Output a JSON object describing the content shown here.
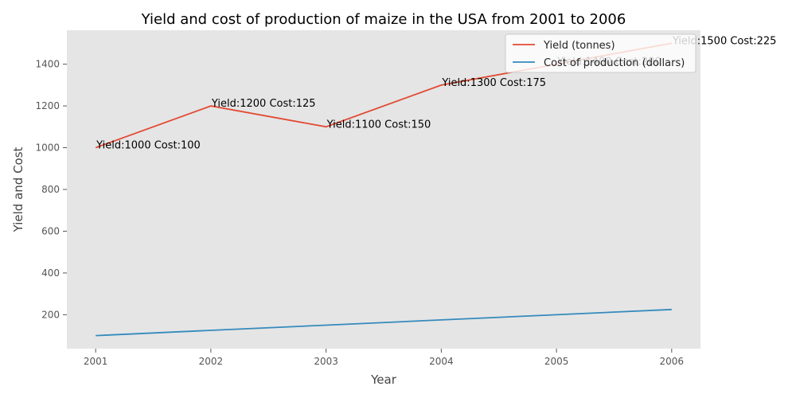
{
  "chart_data": {
    "type": "line",
    "title": "Yield and cost of production of maize in the USA from 2001 to 2006",
    "xlabel": "Year",
    "ylabel": "Yield and Cost",
    "x": [
      2001,
      2002,
      2003,
      2004,
      2005,
      2006
    ],
    "x_tick_labels": [
      "2001",
      "2002",
      "2003",
      "2004",
      "2005",
      "2006"
    ],
    "xlim": [
      2000.75,
      2006.25
    ],
    "ylim": [
      37.5,
      1562.5
    ],
    "y_ticks": [
      200,
      400,
      600,
      800,
      1000,
      1200,
      1400
    ],
    "y_tick_labels": [
      "200",
      "400",
      "600",
      "800",
      "1000",
      "1200",
      "1400"
    ],
    "grid": false,
    "legend_position": "top-right",
    "series": [
      {
        "name": "Yield (tonnes)",
        "values": [
          1000,
          1200,
          1100,
          1300,
          1400,
          1500
        ],
        "color": "#E24A33"
      },
      {
        "name": "Cost of production (dollars)",
        "values": [
          100,
          125,
          150,
          175,
          200,
          225
        ],
        "color": "#348ABD"
      }
    ],
    "annotations": [
      {
        "x": 2001,
        "y": 1000,
        "text": "Yield:1000 Cost:100"
      },
      {
        "x": 2002,
        "y": 1200,
        "text": "Yield:1200 Cost:125"
      },
      {
        "x": 2003,
        "y": 1100,
        "text": "Yield:1100 Cost:150"
      },
      {
        "x": 2004,
        "y": 1300,
        "text": "Yield:1300 Cost:175"
      },
      {
        "x": 2005,
        "y": 1400,
        "text": "Yield:1400 Cost:200"
      },
      {
        "x": 2006,
        "y": 1500,
        "text": "Yield:1500 Cost:225"
      }
    ],
    "colors": {
      "plot_background": "#E5E5E5",
      "page_background": "#FFFFFF"
    }
  }
}
